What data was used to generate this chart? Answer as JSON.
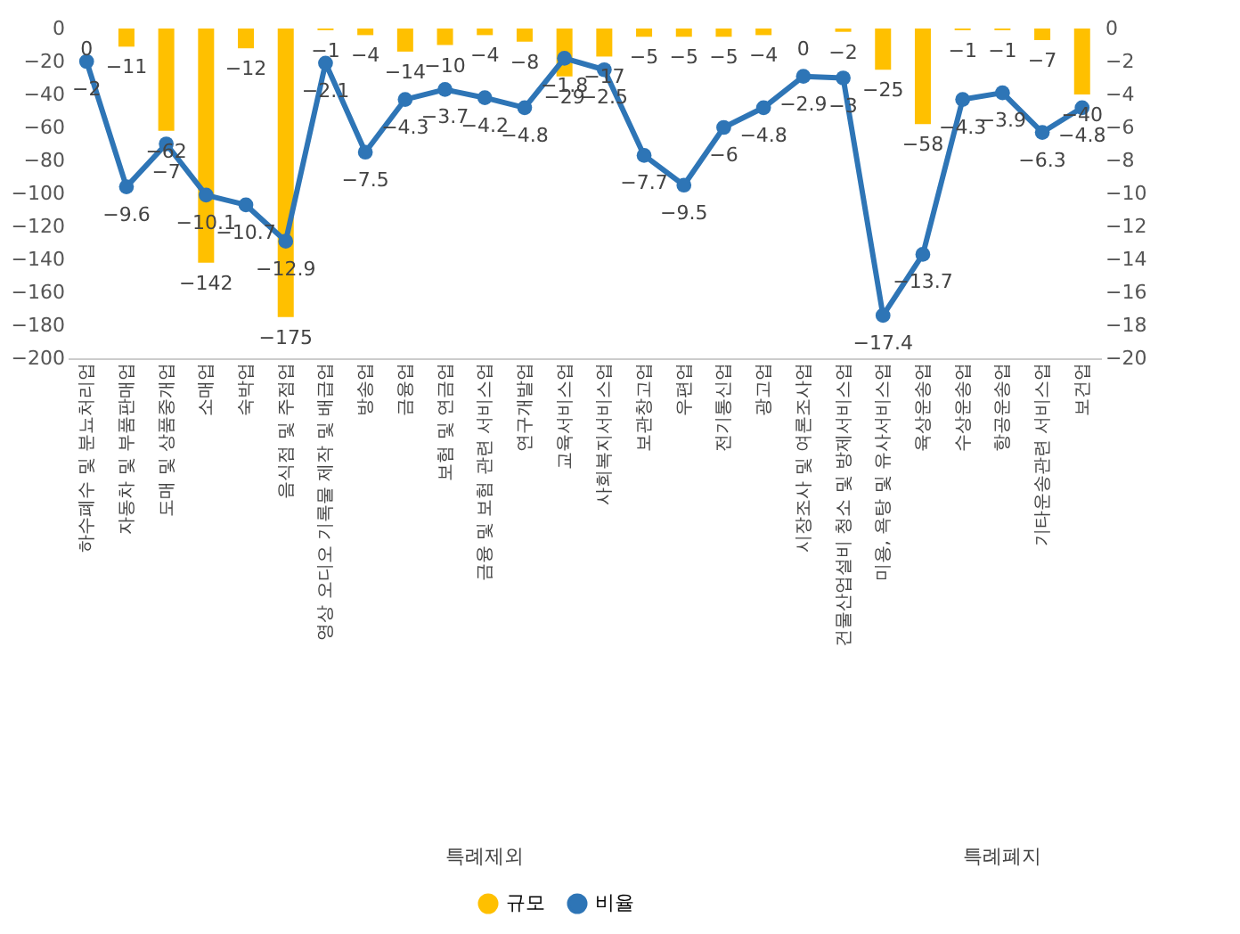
{
  "chart_data": {
    "type": "bar",
    "categories": [
      "하수폐수 및 분뇨처리업",
      "자동차 및 부품판매업",
      "도매 및 상품중개업",
      "소매업",
      "숙박업",
      "음식점 및 주점업",
      "영상 오디오 기록물 제작 및 배급업",
      "방송업",
      "금융업",
      "보험 및 연금업",
      "금융 및 보험 관련 서비스업",
      "연구개발업",
      "교육서비스업",
      "사회복지서비스업",
      "보관창고업",
      "우편업",
      "전기통신업",
      "광고업",
      "시장조사 및 여론조사업",
      "건물산업설비 청소 및 방제서비스업",
      "미용, 욕탕 및 유사서비스업",
      "육상운송업",
      "수상운송업",
      "항공운송업",
      "기타운송관련 서비스업",
      "보건업"
    ],
    "series": [
      {
        "name": "규모",
        "color": "#ffc000",
        "values": [
          0,
          -11,
          -62,
          -142,
          -12,
          -175,
          -1,
          -4,
          -14,
          -10,
          -4,
          -8,
          -29,
          -17,
          -5,
          -5,
          -5,
          -4,
          0,
          -2,
          -25,
          -58,
          -1,
          -1,
          -7,
          -40
        ]
      },
      {
        "name": "비율",
        "type": "line",
        "axis": "y2",
        "color": "#2e75b6",
        "values": [
          -2,
          -9.6,
          -7,
          -10.1,
          -10.7,
          -12.9,
          -2.1,
          -7.5,
          -4.3,
          -3.7,
          -4.2,
          -4.8,
          -1.8,
          -2.5,
          -7.7,
          -9.5,
          -6,
          -4.8,
          -2.9,
          -3,
          -17.4,
          -13.7,
          -4.3,
          -3.9,
          -6.3,
          -4.8
        ]
      }
    ],
    "ylim": [
      -200,
      0
    ],
    "yticks": [
      0,
      -20,
      -40,
      -60,
      -80,
      -100,
      -120,
      -140,
      -160,
      -180,
      -200
    ],
    "y2lim": [
      -20,
      0
    ],
    "y2ticks": [
      0,
      -2,
      -4,
      -6,
      -8,
      -10,
      -12,
      -14,
      -16,
      -18,
      -20
    ],
    "annotations": [
      "특례제외",
      "특례폐지"
    ],
    "data_labels": true,
    "marker": "circle",
    "legend": "bottom",
    "grid": false
  }
}
